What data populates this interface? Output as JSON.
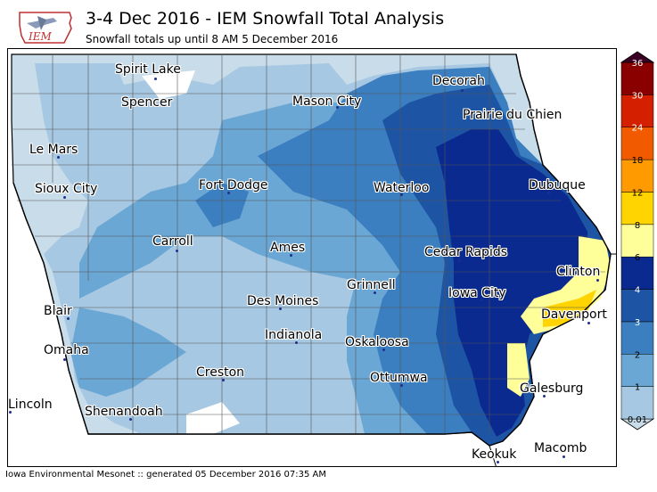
{
  "title": "3-4 Dec 2016 - IEM Snowfall Total Analysis",
  "subtitle": "Snowfall totals up until 8 AM 5 December 2016",
  "footer": "Iowa Environmental Mesonet :: generated 05 December 2016 07:35 AM",
  "logo_text": "IEM",
  "colorbar": {
    "levels": [
      "0.01",
      "1",
      "2",
      "3",
      "4",
      "6",
      "8",
      "12",
      "18",
      "24",
      "30",
      "36"
    ],
    "colors": [
      "#c8dcea",
      "#a6c8e2",
      "#6ba7d4",
      "#3b7fc0",
      "#1d54a4",
      "#0a2a8f",
      "#ffff9a",
      "#ffd400",
      "#ff9a00",
      "#f25a00",
      "#d42000",
      "#8a0000",
      "#3a0024"
    ]
  },
  "cities": [
    {
      "name": "Spirit Lake"
    },
    {
      "name": "Decorah"
    },
    {
      "name": "Spencer"
    },
    {
      "name": "Mason City"
    },
    {
      "name": "Prairie du Chien"
    },
    {
      "name": "Le Mars"
    },
    {
      "name": "Sioux City"
    },
    {
      "name": "Fort Dodge"
    },
    {
      "name": "Waterloo"
    },
    {
      "name": "Dubuque"
    },
    {
      "name": "Carroll"
    },
    {
      "name": "Ames"
    },
    {
      "name": "Cedar Rapids"
    },
    {
      "name": "Clinton"
    },
    {
      "name": "Grinnell"
    },
    {
      "name": "Iowa City"
    },
    {
      "name": "Blair"
    },
    {
      "name": "Des Moines"
    },
    {
      "name": "Davenport"
    },
    {
      "name": "Indianola"
    },
    {
      "name": "Oskaloosa"
    },
    {
      "name": "Omaha"
    },
    {
      "name": "Creston"
    },
    {
      "name": "Ottumwa"
    },
    {
      "name": "Galesburg"
    },
    {
      "name": "Lincoln"
    },
    {
      "name": "Shenandoah"
    },
    {
      "name": "Macomb"
    },
    {
      "name": "Keokuk"
    }
  ]
}
